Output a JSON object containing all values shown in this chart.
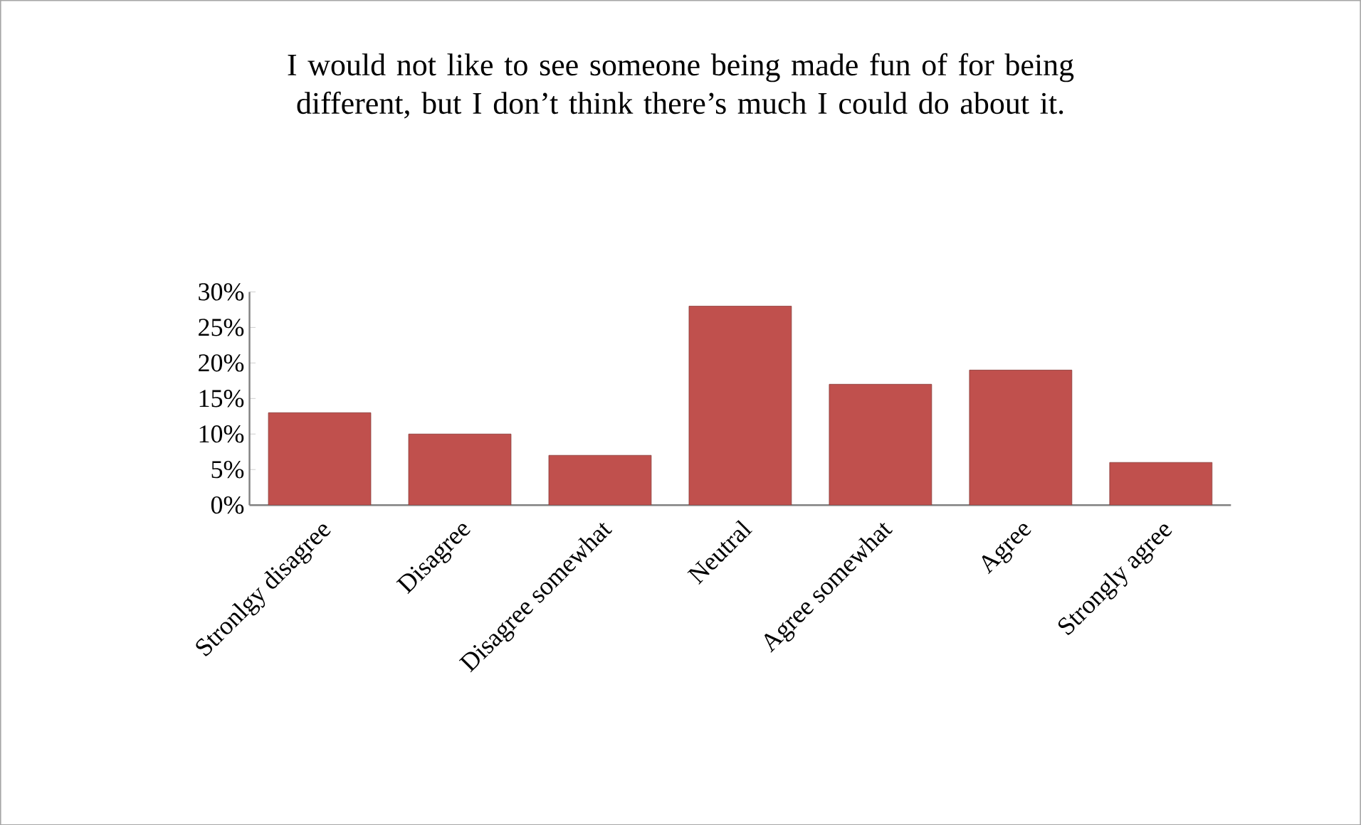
{
  "chart_data": {
    "type": "bar",
    "title": "I would not like to see someone being made fun of for being different, but I don’t think there’s much I could do about it.",
    "categories": [
      "Stronlgy disagree",
      "Disagree",
      "Disagree somewhat",
      "Neutral",
      "Agree somewhat",
      "Agree",
      "Strongly agree"
    ],
    "values": [
      13,
      10,
      7,
      28,
      17,
      19,
      6
    ],
    "color": "#c0504d",
    "ylim": [
      0,
      30
    ],
    "yticks": [
      {
        "value": 0,
        "label": "0%"
      },
      {
        "value": 5,
        "label": "5%"
      },
      {
        "value": 10,
        "label": "10%"
      },
      {
        "value": 15,
        "label": "15%"
      },
      {
        "value": 20,
        "label": "20%"
      },
      {
        "value": 25,
        "label": "25%"
      },
      {
        "value": 30,
        "label": "30%"
      }
    ]
  }
}
